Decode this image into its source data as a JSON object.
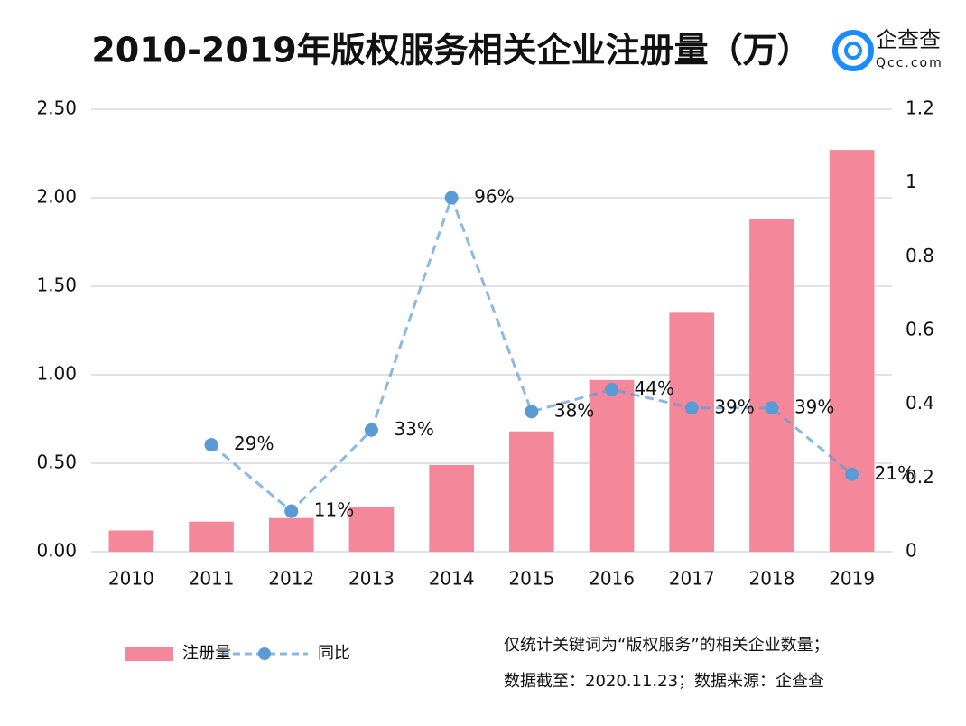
{
  "chart_data": {
    "type": "bar",
    "title": "2010-2019年版权服务相关企业注册量（万）",
    "categories": [
      "2010",
      "2011",
      "2012",
      "2013",
      "2014",
      "2015",
      "2016",
      "2017",
      "2018",
      "2019"
    ],
    "series": [
      {
        "name": "注册量",
        "type": "bar",
        "color": "#f4889a",
        "values": [
          0.12,
          0.17,
          0.19,
          0.25,
          0.49,
          0.68,
          0.97,
          1.35,
          1.88,
          2.27
        ]
      },
      {
        "name": "同比",
        "type": "line",
        "axis": "y2",
        "color": "#5b9bd5",
        "values": [
          null,
          0.29,
          0.11,
          0.33,
          0.96,
          0.38,
          0.44,
          0.39,
          0.39,
          0.21
        ],
        "value_labels": [
          null,
          "29%",
          "11%",
          "33%",
          "96%",
          "38%",
          "44%",
          "39%",
          "39%",
          "21%"
        ]
      }
    ],
    "ylim": [
      0,
      2.5
    ],
    "yticks": [
      {
        "value": 0,
        "label": "0.00"
      },
      {
        "value": 0.5,
        "label": "0.50"
      },
      {
        "value": 1,
        "label": "1.00"
      },
      {
        "value": 1.5,
        "label": "1.50"
      },
      {
        "value": 2,
        "label": "2.00"
      },
      {
        "value": 2.5,
        "label": "2.50"
      }
    ],
    "y2lim": [
      0,
      1.2
    ],
    "y2ticks": [
      0,
      0.2,
      0.4,
      0.6,
      0.8,
      1,
      1.2
    ],
    "grid": true,
    "legend": "bottom-left"
  },
  "logo": {
    "name": "企查查",
    "url": "Qcc.com"
  },
  "notes": [
    "仅统计关键词为“版权服务”的相关企业数量；",
    "数据截至：2020.11.23；数据来源：企查查"
  ]
}
